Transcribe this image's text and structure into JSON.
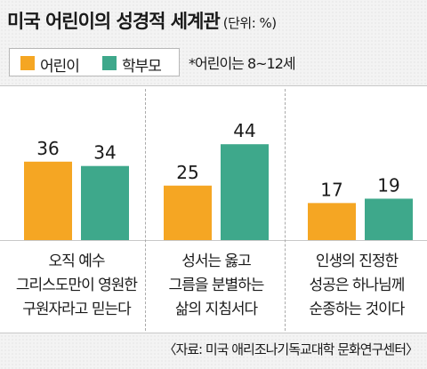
{
  "title": "미국 어린이의 성경적 세계관",
  "unit": "(단위: %)",
  "note": "*어린이는 8~12세",
  "source": "〈자료: 미국 애리조나기독교대학 문화연구센터〉",
  "colors": {
    "children": "#f5a623",
    "parents": "#3ea88b"
  },
  "chart_data": {
    "type": "bar",
    "categories": [
      [
        "오직 예수",
        "그리스도만이 영원한",
        "구원자라고 믿는다"
      ],
      [
        "성서는 옳고",
        "그름을 분별하는",
        "삶의 지침서다"
      ],
      [
        "인생의 진정한",
        "성공은 하나님께",
        "순종하는 것이다"
      ]
    ],
    "series": [
      {
        "name": "어린이",
        "values": [
          36,
          25,
          17
        ]
      },
      {
        "name": "학부모",
        "values": [
          34,
          44,
          19
        ]
      }
    ],
    "legend": "top-left",
    "grid": false
  }
}
